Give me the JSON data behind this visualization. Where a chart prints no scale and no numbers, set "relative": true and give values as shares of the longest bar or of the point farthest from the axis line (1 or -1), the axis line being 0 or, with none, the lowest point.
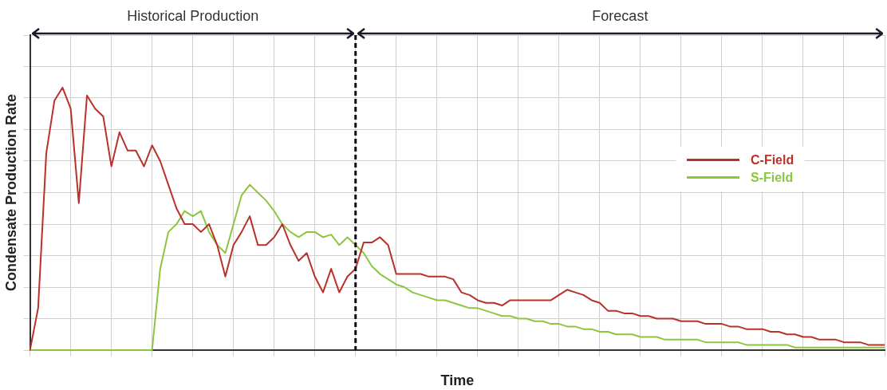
{
  "chart_data": {
    "type": "line",
    "relative": true,
    "xlabel": "Time",
    "ylabel": "Condensate Production Rate",
    "annotations": [
      "Historical Production",
      "Forecast"
    ],
    "categories": [
      null,
      null,
      null,
      null,
      null,
      null,
      null,
      null,
      null,
      null,
      null,
      null,
      null,
      null,
      null,
      null,
      null,
      null,
      null,
      null,
      null,
      null,
      null,
      null,
      null,
      null,
      null,
      null,
      null,
      null,
      null,
      null,
      null,
      null,
      null,
      null,
      null,
      null,
      null,
      null,
      null,
      null,
      null,
      null,
      null,
      null,
      null,
      null,
      null,
      null,
      null,
      null,
      null,
      null,
      null,
      null,
      null,
      null,
      null,
      null,
      null,
      null,
      null,
      null,
      null,
      null,
      null,
      null,
      null,
      null,
      null,
      null,
      null,
      null,
      null,
      null,
      null,
      null,
      null,
      null,
      null,
      null,
      null,
      null,
      null,
      null,
      null,
      null,
      null,
      null,
      null,
      null,
      null,
      null,
      null,
      null,
      null,
      null,
      null,
      null,
      null,
      null,
      null,
      null,
      null,
      null
    ],
    "series": [
      {
        "name": "C-Field",
        "color": "#b8312a",
        "values": [
          0,
          0.16,
          0.75,
          0.95,
          1,
          0.92,
          0.56,
          0.97,
          0.92,
          0.89,
          0.7,
          0.83,
          0.76,
          0.76,
          0.7,
          0.78,
          0.72,
          0.63,
          0.54,
          0.48,
          0.48,
          0.45,
          0.48,
          0.4,
          0.28,
          0.4,
          0.45,
          0.51,
          0.4,
          0.4,
          0.43,
          0.48,
          0.4,
          0.34,
          0.37,
          0.28,
          0.22,
          0.31,
          0.22,
          0.28,
          0.31,
          0.41,
          0.41,
          0.43,
          0.4,
          0.29,
          0.29,
          0.29,
          0.29,
          0.28,
          0.28,
          0.28,
          0.27,
          0.22,
          0.21,
          0.19,
          0.18,
          0.18,
          0.17,
          0.19,
          0.19,
          0.19,
          0.19,
          0.19,
          0.19,
          0.21,
          0.23,
          0.22,
          0.21,
          0.19,
          0.18,
          0.15,
          0.15,
          0.14,
          0.14,
          0.13,
          0.13,
          0.12,
          0.12,
          0.12,
          0.11,
          0.11,
          0.11,
          0.1,
          0.1,
          0.1,
          0.09,
          0.09,
          0.08,
          0.08,
          0.08,
          0.07,
          0.07,
          0.06,
          0.06,
          0.05,
          0.05,
          0.04,
          0.04,
          0.04,
          0.03,
          0.03,
          0.03,
          0.02,
          0.02,
          0.02
        ]
      },
      {
        "name": "S-Field",
        "color": "#8cc63f",
        "values": [
          0,
          0,
          0,
          0,
          0,
          0,
          0,
          0,
          0,
          0,
          0,
          0,
          0,
          0,
          0,
          0,
          0.31,
          0.45,
          0.48,
          0.53,
          0.51,
          0.53,
          0.45,
          0.4,
          0.37,
          0.48,
          0.59,
          0.63,
          0.6,
          0.57,
          0.53,
          0.48,
          0.45,
          0.43,
          0.45,
          0.45,
          0.43,
          0.44,
          0.4,
          0.43,
          0.4,
          0.37,
          0.32,
          0.29,
          0.27,
          0.25,
          0.24,
          0.22,
          0.21,
          0.2,
          0.19,
          0.19,
          0.18,
          0.17,
          0.16,
          0.16,
          0.15,
          0.14,
          0.13,
          0.13,
          0.12,
          0.12,
          0.11,
          0.11,
          0.1,
          0.1,
          0.09,
          0.09,
          0.08,
          0.08,
          0.07,
          0.07,
          0.06,
          0.06,
          0.06,
          0.05,
          0.05,
          0.05,
          0.04,
          0.04,
          0.04,
          0.04,
          0.04,
          0.03,
          0.03,
          0.03,
          0.03,
          0.03,
          0.02,
          0.02,
          0.02,
          0.02,
          0.02,
          0.02,
          0.01,
          0.01,
          0.01,
          0.01,
          0.01,
          0.01,
          0.01,
          0.01,
          0.01,
          0.01,
          0.01,
          0.01
        ]
      }
    ],
    "grid": true,
    "legend": "right"
  }
}
